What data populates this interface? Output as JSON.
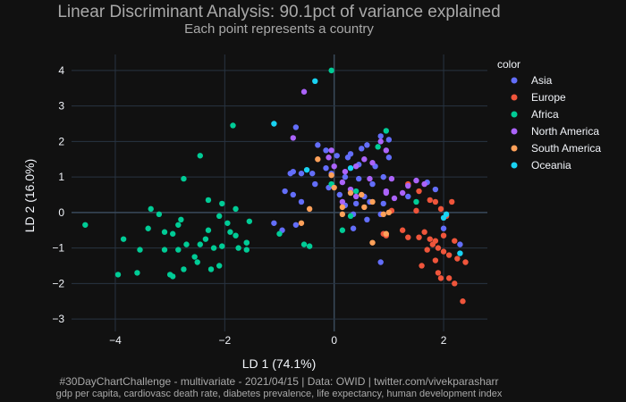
{
  "chart_data": {
    "type": "scatter",
    "title": "Linear Discriminant Analysis: 90.1pct of variance explained",
    "subtitle": "Each point represents a country",
    "xlabel": "LD 1 (74.1%)",
    "ylabel": "LD 2 (16.0%)",
    "xlim": [
      -4.8,
      2.8
    ],
    "ylim": [
      -3.35,
      4.45
    ],
    "xticks": [
      -4,
      -2,
      0,
      2
    ],
    "yticks": [
      -3,
      -2,
      -1,
      0,
      1,
      2,
      3,
      4
    ],
    "grid": true,
    "legend_title": "color",
    "legend_position": "right",
    "footer_line1": "#30DayChartChallenge - multivariate - 2021/04/15 | Data: OWID | twitter.com/vivekparasharr",
    "footer_line2": "gdp per capita, cardiovasc death rate, diabetes prevalence, life expectancy, human development index",
    "series": [
      {
        "name": "Asia",
        "color": "#636efa",
        "points": [
          [
            -0.7,
            2.4
          ],
          [
            -0.3,
            1.9
          ],
          [
            -0.15,
            1.75
          ],
          [
            0.05,
            1.6
          ],
          [
            0.3,
            1.65
          ],
          [
            0.5,
            1.8
          ],
          [
            0.6,
            1.9
          ],
          [
            0.85,
            2.15
          ],
          [
            1.0,
            2.05
          ],
          [
            0.75,
            1.3
          ],
          [
            1.0,
            1.55
          ],
          [
            0.45,
            1.35
          ],
          [
            0.25,
            1.55
          ],
          [
            -0.8,
            1.1
          ],
          [
            -0.75,
            1.15
          ],
          [
            -0.6,
            1.1
          ],
          [
            -0.4,
            1.1
          ],
          [
            -0.15,
            1.25
          ],
          [
            -0.05,
            1.1
          ],
          [
            0.2,
            1.0
          ],
          [
            0.45,
            0.95
          ],
          [
            0.7,
            0.8
          ],
          [
            0.9,
            1.0
          ],
          [
            0.55,
            0.45
          ],
          [
            0.4,
            0.25
          ],
          [
            0.65,
            0.3
          ],
          [
            0.9,
            0.25
          ],
          [
            -0.9,
            0.6
          ],
          [
            -0.75,
            0.5
          ],
          [
            -0.6,
            0.3
          ],
          [
            -0.35,
            0.8
          ],
          [
            -0.1,
            0.7
          ],
          [
            0.1,
            0.5
          ],
          [
            0.2,
            0.2
          ],
          [
            0.35,
            -0.05
          ],
          [
            0.6,
            -0.2
          ],
          [
            0.85,
            -0.05
          ],
          [
            -1.1,
            -0.3
          ],
          [
            -0.95,
            -0.5
          ],
          [
            -0.7,
            -0.35
          ],
          [
            0.35,
            -0.45
          ],
          [
            0.85,
            -1.4
          ],
          [
            1.35,
            0.45
          ],
          [
            1.7,
            0.85
          ],
          [
            1.85,
            0.65
          ],
          [
            2.3,
            -0.9
          ],
          [
            2.0,
            -0.45
          ]
        ]
      },
      {
        "name": "Europe",
        "color": "#ef553b",
        "points": [
          [
            1.35,
            0.8
          ],
          [
            1.55,
            0.6
          ],
          [
            1.75,
            0.35
          ],
          [
            1.95,
            0.1
          ],
          [
            2.05,
            -0.1
          ],
          [
            2.15,
            0.3
          ],
          [
            1.55,
            -0.7
          ],
          [
            1.65,
            -0.55
          ],
          [
            1.75,
            -0.75
          ],
          [
            1.8,
            -0.9
          ],
          [
            1.9,
            -1.0
          ],
          [
            2.0,
            -1.1
          ],
          [
            2.1,
            -1.2
          ],
          [
            2.25,
            -1.3
          ],
          [
            2.4,
            -1.4
          ],
          [
            2.1,
            -1.85
          ],
          [
            2.2,
            -2.0
          ],
          [
            2.35,
            -2.5
          ],
          [
            1.6,
            -1.5
          ],
          [
            1.85,
            -1.35
          ],
          [
            1.9,
            -1.7
          ],
          [
            1.95,
            -1.85
          ],
          [
            1.7,
            -1.05
          ],
          [
            1.85,
            -0.8
          ],
          [
            2.0,
            -0.65
          ],
          [
            2.2,
            -0.8
          ],
          [
            1.25,
            -0.5
          ],
          [
            1.35,
            -0.7
          ],
          [
            1.05,
            0.05
          ],
          [
            0.9,
            -0.6
          ],
          [
            0.95,
            -0.65
          ],
          [
            1.5,
            0.05
          ],
          [
            1.85,
            0.3
          ]
        ]
      },
      {
        "name": "Africa",
        "color": "#00cc96",
        "points": [
          [
            -4.55,
            -0.35
          ],
          [
            -3.95,
            -1.75
          ],
          [
            -3.85,
            -0.75
          ],
          [
            -3.6,
            -1.7
          ],
          [
            -3.4,
            -0.45
          ],
          [
            -3.1,
            -1.05
          ],
          [
            -2.95,
            -0.6
          ],
          [
            -2.85,
            -1.05
          ],
          [
            -2.8,
            -0.2
          ],
          [
            -2.7,
            -0.9
          ],
          [
            -2.5,
            -1.4
          ],
          [
            -2.35,
            -0.75
          ],
          [
            -2.2,
            -1.0
          ],
          [
            -2.1,
            -1.5
          ],
          [
            -1.9,
            -0.55
          ],
          [
            -1.75,
            -1.0
          ],
          [
            -1.6,
            -0.85
          ],
          [
            -3.2,
            -0.05
          ],
          [
            -3.35,
            0.1
          ],
          [
            -2.95,
            -1.8
          ],
          [
            -2.75,
            -1.6
          ],
          [
            -2.55,
            -1.25
          ],
          [
            -2.25,
            -1.6
          ],
          [
            -2.1,
            -0.1
          ],
          [
            -1.95,
            -0.3
          ],
          [
            -1.55,
            -0.25
          ],
          [
            -1.0,
            -0.6
          ],
          [
            -0.55,
            -0.9
          ],
          [
            -0.45,
            -0.95
          ],
          [
            -2.75,
            0.95
          ],
          [
            -2.45,
            1.6
          ],
          [
            -1.85,
            2.45
          ],
          [
            -1.6,
            -0.85
          ],
          [
            -1.6,
            -1.05
          ],
          [
            -2.85,
            -0.35
          ],
          [
            -3.0,
            -1.75
          ],
          [
            -2.3,
            0.35
          ],
          [
            -2.05,
            0.25
          ],
          [
            -1.8,
            0.1
          ],
          [
            -0.05,
            4.0
          ],
          [
            0.95,
            2.3
          ],
          [
            0.8,
            1.85
          ],
          [
            1.5,
            0.3
          ],
          [
            0.4,
            0.6
          ],
          [
            0.3,
            -0.1
          ],
          [
            -0.05,
            0.8
          ],
          [
            0.15,
            -0.5
          ],
          [
            -2.45,
            -0.9
          ],
          [
            -3.1,
            -0.55
          ],
          [
            -3.55,
            -1.05
          ],
          [
            -2.3,
            -0.5
          ],
          [
            -2.05,
            -0.95
          ],
          [
            -1.8,
            -0.65
          ]
        ]
      },
      {
        "name": "North America",
        "color": "#ab63fa",
        "points": [
          [
            -0.55,
            3.4
          ],
          [
            -0.75,
            2.1
          ],
          [
            0.85,
            2.0
          ],
          [
            0.95,
            1.75
          ],
          [
            0.7,
            1.4
          ],
          [
            0.55,
            1.5
          ],
          [
            0.4,
            1.3
          ],
          [
            0.2,
            1.15
          ],
          [
            0.0,
            1.3
          ],
          [
            -0.1,
            1.55
          ],
          [
            -0.05,
            1.75
          ],
          [
            0.15,
            0.85
          ],
          [
            0.3,
            0.65
          ],
          [
            0.4,
            0.45
          ],
          [
            0.65,
            0.95
          ],
          [
            0.95,
            0.6
          ],
          [
            1.1,
            0.4
          ],
          [
            1.25,
            0.55
          ],
          [
            1.35,
            0.75
          ],
          [
            1.5,
            0.9
          ],
          [
            1.65,
            0.8
          ],
          [
            0.95,
            0.55
          ],
          [
            1.05,
            0.95
          ],
          [
            0.15,
            0.3
          ]
        ]
      },
      {
        "name": "South America",
        "color": "#ffa15a",
        "points": [
          [
            -0.3,
            1.5
          ],
          [
            -0.05,
            1.05
          ],
          [
            0.0,
            0.7
          ],
          [
            0.3,
            0.55
          ],
          [
            0.5,
            0.5
          ],
          [
            0.15,
            0.15
          ],
          [
            0.55,
            0.15
          ],
          [
            0.9,
            -0.05
          ],
          [
            1.0,
            0.0
          ],
          [
            0.7,
            0.3
          ],
          [
            -0.45,
            0.1
          ],
          [
            -0.6,
            -0.3
          ],
          [
            0.15,
            -0.05
          ],
          [
            0.7,
            -0.85
          ],
          [
            0.95,
            -0.6
          ]
        ]
      },
      {
        "name": "Oceania",
        "color": "#19d3f3",
        "points": [
          [
            -0.35,
            3.7
          ],
          [
            -1.1,
            2.5
          ],
          [
            -0.5,
            1.2
          ],
          [
            0.3,
            1.25
          ],
          [
            2.0,
            -0.15
          ],
          [
            2.05,
            -0.05
          ],
          [
            2.3,
            -1.15
          ]
        ]
      }
    ]
  }
}
